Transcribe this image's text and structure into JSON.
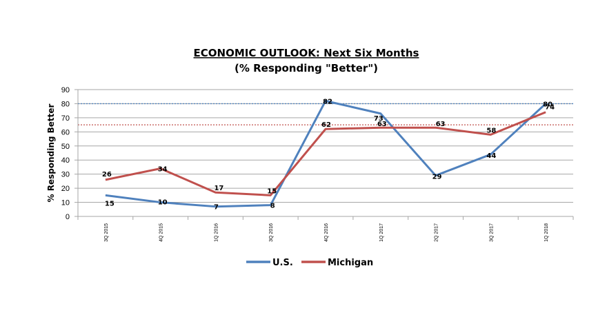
{
  "chart_data": {
    "type": "line",
    "title": "ECONOMIC OUTLOOK:  Next Six Months",
    "subtitle": "(% Responding \"Better\")",
    "xlabel": "",
    "ylabel": "% Responding Better",
    "ylim": [
      0,
      90
    ],
    "yticks": [
      "0",
      "10",
      "20",
      "30",
      "40",
      "50",
      "60",
      "70",
      "80",
      "90"
    ],
    "grid": true,
    "legend_position": "bottom",
    "categories": [
      "3Q 2015",
      "4Q 2015",
      "1Q 2016",
      "3Q 2016",
      "4Q 2016",
      "1Q 2017",
      "2Q 2017",
      "3Q 2017",
      "1Q 2018"
    ],
    "series": [
      {
        "name": "U.S.",
        "color": "#4F81BD",
        "values": [
          15,
          10,
          7,
          8,
          82,
          73,
          29,
          44,
          80
        ],
        "labels": [
          "15",
          "10",
          "7",
          "8",
          "82",
          "73",
          "29",
          "44",
          "80"
        ]
      },
      {
        "name": "Michigan",
        "color": "#C0504D",
        "values": [
          26,
          34,
          17,
          15,
          62,
          63,
          63,
          58,
          74
        ],
        "labels": [
          "26",
          "34",
          "17",
          "15",
          "62",
          "63",
          "63",
          "58",
          "74"
        ]
      }
    ],
    "reference_lines": [
      {
        "value": 80,
        "color": "#4F81BD",
        "style": "dotted"
      },
      {
        "value": 65,
        "color": "#C0504D",
        "style": "dotted"
      }
    ]
  }
}
